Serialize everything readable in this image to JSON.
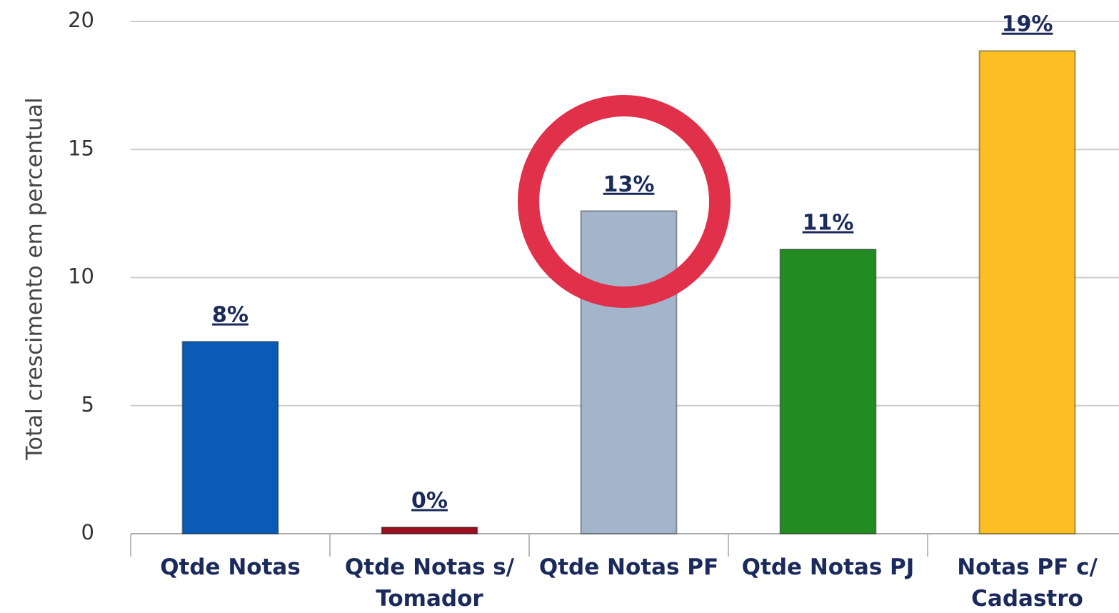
{
  "chart_data": {
    "type": "bar",
    "y_axis_label": "Total crescimento em percentual",
    "categories": [
      "Qtde Notas",
      "Qtde Notas s/ Tomador",
      "Qtde Notas PF",
      "Qtde Notas PJ",
      "Notas PF c/ Cadastro"
    ],
    "values": [
      7.5,
      0.25,
      12.6,
      11.1,
      18.85
    ],
    "value_labels": [
      "8%",
      "0%",
      "13%",
      "11%",
      "19%"
    ],
    "colors": [
      "#0a5bb5",
      "#9b1020",
      "#a2b5cb",
      "#228b22",
      "#fbbf24"
    ],
    "ylim": [
      0,
      20
    ],
    "yticks": [
      0,
      5,
      10,
      15,
      20
    ],
    "grid": true
  }
}
